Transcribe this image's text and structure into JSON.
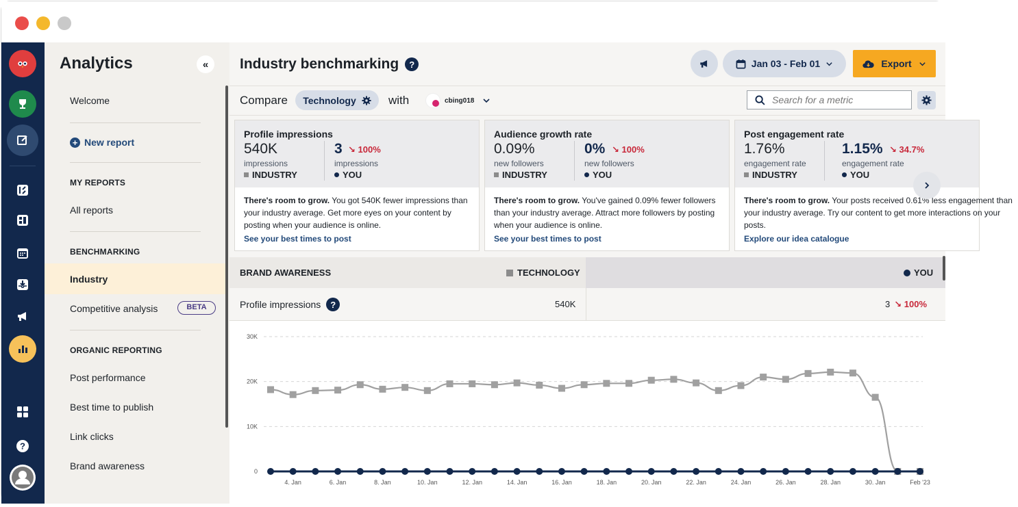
{
  "sidebar": {
    "title": "Analytics",
    "collapse_icon": "«",
    "welcome": "Welcome",
    "new_report": "New report",
    "my_reports_head": "MY REPORTS",
    "all_reports": "All reports",
    "benchmarking_head": "BENCHMARKING",
    "industry": "Industry",
    "competitive": "Competitive analysis",
    "beta": "BETA",
    "organic_head": "ORGANIC REPORTING",
    "post_performance": "Post performance",
    "best_time": "Best time to publish",
    "link_clicks": "Link clicks",
    "brand_awareness": "Brand awareness"
  },
  "header": {
    "title": "Industry benchmarking",
    "date_range": "Jan 03 - Feb 01",
    "export": "Export"
  },
  "compare": {
    "label": "Compare",
    "industry": "Technology",
    "with": "with",
    "account": "cbing018",
    "search_placeholder": "Search for a metric"
  },
  "cards": [
    {
      "title": "Profile impressions",
      "industry_value": "540K",
      "industry_unit": "impressions",
      "industry_tag": "INDUSTRY",
      "you_value": "3",
      "you_change": "100%",
      "you_unit": "impressions",
      "you_tag": "YOU",
      "body_bold": "There's room to grow.",
      "body": " You got 540K fewer impressions than your industry average. Get more eyes on your content by posting when your audience is online.",
      "link": "See your best times to post"
    },
    {
      "title": "Audience growth rate",
      "industry_value": "0.09%",
      "industry_unit": "new followers",
      "industry_tag": "INDUSTRY",
      "you_value": "0%",
      "you_change": "100%",
      "you_unit": "new followers",
      "you_tag": "YOU",
      "body_bold": "There's room to grow.",
      "body": " You've gained 0.09% fewer followers than your industry average. Attract more followers by posting when your audience is online.",
      "link": "See your best times to post"
    },
    {
      "title": "Post engagement rate",
      "industry_value": "1.76%",
      "industry_unit": "engagement rate",
      "industry_tag": "INDUSTRY",
      "you_value": "1.15%",
      "you_change": "34.7%",
      "you_unit": "engagement rate",
      "you_tag": "YOU",
      "body_bold": "There's room to grow.",
      "body": " Your posts received 0.61% less engagement than your industry average. Try our content to get more interactions on your posts.",
      "link": "Explore our idea catalogue"
    }
  ],
  "table": {
    "section": "BRAND AWARENESS",
    "col_industry": "TECHNOLOGY",
    "col_you": "YOU",
    "row_label": "Profile impressions",
    "row_industry": "540K",
    "row_you": "3",
    "row_you_change": "100%"
  },
  "colors": {
    "rail": "#12284c",
    "accent": "#f6a821",
    "industry_series": "#a0a0a0",
    "you_series": "#12284c",
    "negative": "#c8283a"
  },
  "chart_data": {
    "type": "line",
    "ylim": [
      0,
      30000
    ],
    "yticks": [
      "0",
      "10K",
      "20K",
      "30K"
    ],
    "xticks": [
      "4. Jan",
      "6. Jan",
      "8. Jan",
      "10. Jan",
      "12. Jan",
      "14. Jan",
      "16. Jan",
      "18. Jan",
      "20. Jan",
      "22. Jan",
      "24. Jan",
      "26. Jan",
      "28. Jan",
      "30. Jan",
      "Feb '23"
    ],
    "x": [
      "Jan 3",
      "Jan 4",
      "Jan 5",
      "Jan 6",
      "Jan 7",
      "Jan 8",
      "Jan 9",
      "Jan 10",
      "Jan 11",
      "Jan 12",
      "Jan 13",
      "Jan 14",
      "Jan 15",
      "Jan 16",
      "Jan 17",
      "Jan 18",
      "Jan 19",
      "Jan 20",
      "Jan 21",
      "Jan 22",
      "Jan 23",
      "Jan 24",
      "Jan 25",
      "Jan 26",
      "Jan 27",
      "Jan 28",
      "Jan 29",
      "Jan 30",
      "Jan 31",
      "Feb 1"
    ],
    "series": [
      {
        "name": "TECHNOLOGY",
        "values": [
          18200,
          17100,
          18000,
          18100,
          19300,
          18300,
          18700,
          18000,
          19500,
          19500,
          19300,
          19700,
          19200,
          18500,
          19300,
          19600,
          19600,
          20300,
          20500,
          19700,
          18000,
          19100,
          21000,
          20500,
          21800,
          22100,
          21900,
          16500,
          0,
          0
        ]
      },
      {
        "name": "YOU",
        "values": [
          0,
          0,
          0,
          0,
          0,
          0,
          0,
          0,
          0,
          0,
          0,
          0,
          0,
          0,
          0,
          0,
          0,
          0,
          0,
          0,
          0,
          0,
          0,
          0,
          0,
          0,
          0,
          0,
          0,
          0
        ]
      }
    ]
  }
}
